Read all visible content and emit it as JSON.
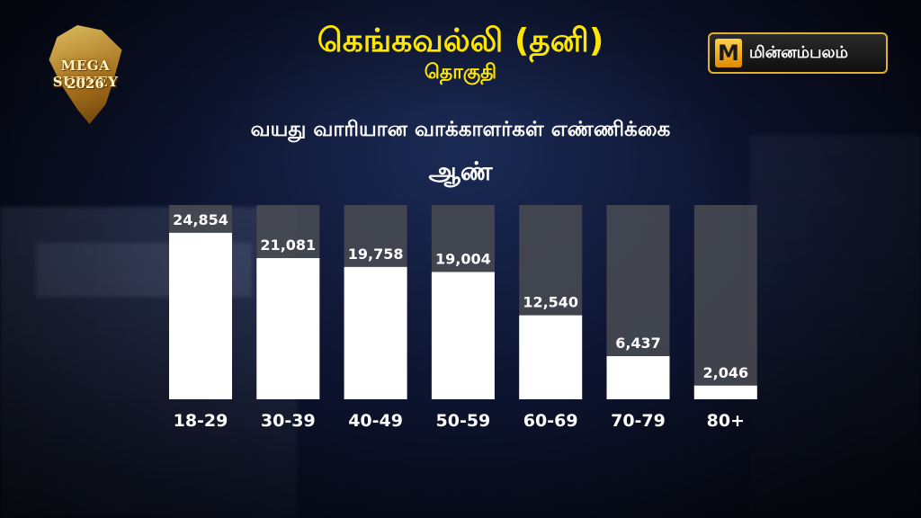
{
  "header": {
    "title": "கெங்கவல்லி (தனி)",
    "subtitle": "தொகுதி"
  },
  "logos": {
    "survey_line1": "MEGA SURVEY",
    "survey_line2": "2026",
    "brand_mark": "M",
    "brand_name": "மின்னம்பலம்"
  },
  "colors": {
    "title": "#ffe600",
    "bar_fill": "#ffffff",
    "bar_track": "#4a4c52"
  },
  "chart_data": {
    "type": "bar",
    "title": "வயது வாரியான வாக்காளர்கள் எண்ணிக்கை",
    "subtitle": "ஆண்",
    "categories": [
      "18-29",
      "30-39",
      "40-49",
      "50-59",
      "60-69",
      "70-79",
      "80+"
    ],
    "values": [
      24854,
      21081,
      19758,
      19004,
      12540,
      6437,
      2046
    ],
    "value_labels": [
      "24,854",
      "21,081",
      "19,758",
      "19,004",
      "12,540",
      "6,437",
      "2,046"
    ],
    "ylim": [
      0,
      29000
    ],
    "grid": false,
    "legend": "none"
  }
}
